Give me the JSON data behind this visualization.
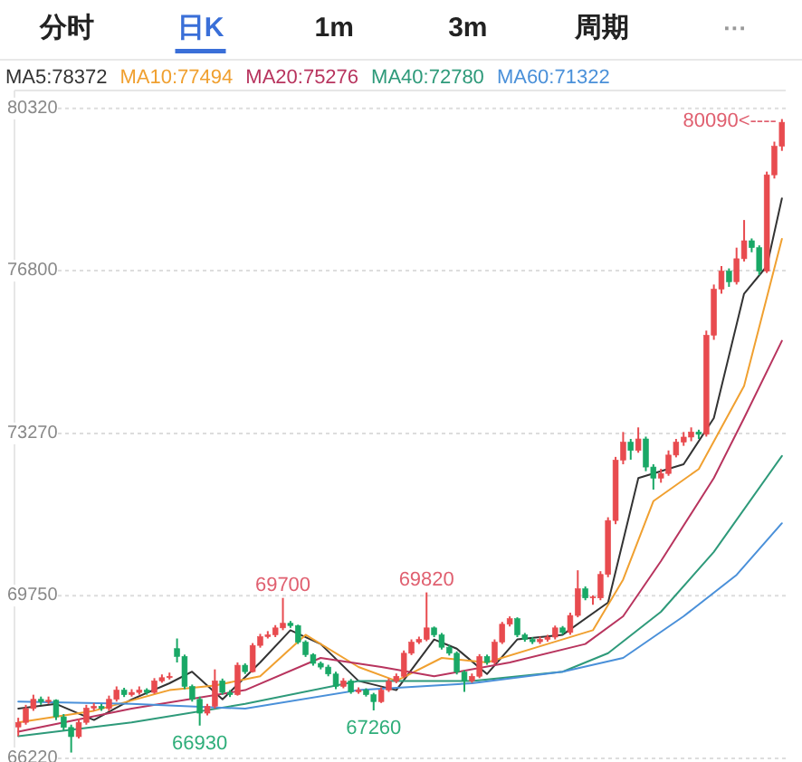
{
  "chart_data": {
    "type": "candlestick",
    "categories": [
      null,
      null,
      null,
      null,
      null,
      null,
      null,
      null,
      null,
      null,
      null,
      null,
      null,
      null,
      null,
      null,
      null,
      null,
      null,
      null,
      null,
      null,
      null,
      null,
      null,
      null,
      null,
      null,
      null,
      null,
      null,
      null,
      null,
      null,
      null,
      null,
      null,
      null,
      null,
      null,
      null,
      null,
      null,
      null,
      null,
      null,
      null,
      null,
      null,
      null,
      null,
      null,
      null,
      null,
      null,
      null,
      null,
      null,
      null,
      null,
      null,
      null,
      null,
      null,
      null,
      null,
      null,
      null,
      null,
      null,
      null,
      null,
      null,
      null,
      null,
      null,
      null,
      null,
      null,
      null,
      null,
      null,
      null,
      null,
      null,
      null,
      null,
      null,
      null,
      null,
      null,
      null,
      null,
      null,
      null,
      null,
      null,
      null,
      null,
      null,
      null,
      null
    ],
    "ohlc": [
      [
        66900,
        67100,
        66700,
        67000
      ],
      [
        67000,
        67380,
        66950,
        67300
      ],
      [
        67300,
        67600,
        67250,
        67500
      ],
      [
        67500,
        67560,
        67380,
        67450
      ],
      [
        67450,
        67560,
        67400,
        67480
      ],
      [
        67480,
        67500,
        67050,
        67120
      ],
      [
        67120,
        67180,
        66820,
        66890
      ],
      [
        66890,
        66950,
        66345,
        66690
      ],
      [
        66690,
        67080,
        66650,
        67000
      ],
      [
        67000,
        67380,
        66950,
        67310
      ],
      [
        67310,
        67420,
        67250,
        67350
      ],
      [
        67350,
        67400,
        67250,
        67300
      ],
      [
        67300,
        67580,
        67240,
        67500
      ],
      [
        67500,
        67780,
        67450,
        67700
      ],
      [
        67700,
        67750,
        67550,
        67600
      ],
      [
        67600,
        67720,
        67560,
        67650
      ],
      [
        67650,
        67780,
        67600,
        67700
      ],
      [
        67700,
        67740,
        67600,
        67650
      ],
      [
        67650,
        67960,
        67620,
        67900
      ],
      [
        67900,
        68040,
        67860,
        67970
      ],
      [
        67970,
        68080,
        67930,
        68000
      ],
      [
        68600,
        68820,
        68300,
        68430
      ],
      [
        68430,
        68470,
        67720,
        67780
      ],
      [
        67780,
        67820,
        67450,
        67500
      ],
      [
        67500,
        67560,
        66930,
        67200
      ],
      [
        67200,
        67400,
        67150,
        67350
      ],
      [
        67350,
        68150,
        67300,
        67900
      ],
      [
        67900,
        67950,
        67600,
        67650
      ],
      [
        67650,
        67700,
        67550,
        67600
      ],
      [
        67600,
        68300,
        67580,
        68240
      ],
      [
        68240,
        68280,
        68050,
        68100
      ],
      [
        68100,
        68720,
        68080,
        68670
      ],
      [
        68670,
        68920,
        68620,
        68860
      ],
      [
        68860,
        68980,
        68820,
        68900
      ],
      [
        68900,
        69110,
        68850,
        69050
      ],
      [
        69050,
        69700,
        69000,
        69150
      ],
      [
        69150,
        69200,
        69050,
        69100
      ],
      [
        69100,
        69120,
        68700,
        68740
      ],
      [
        68740,
        68780,
        68420,
        68470
      ],
      [
        68470,
        68500,
        68230,
        68280
      ],
      [
        68280,
        68320,
        68150,
        68200
      ],
      [
        68200,
        68250,
        68000,
        68050
      ],
      [
        68050,
        68100,
        67720,
        67780
      ],
      [
        67780,
        67960,
        67740,
        67900
      ],
      [
        67900,
        67940,
        67620,
        67660
      ],
      [
        67660,
        67760,
        67620,
        67700
      ],
      [
        67700,
        67740,
        67560,
        67600
      ],
      [
        67600,
        67640,
        67260,
        67450
      ],
      [
        67450,
        67760,
        67420,
        67700
      ],
      [
        67700,
        67950,
        67660,
        67890
      ],
      [
        67890,
        68060,
        67850,
        68000
      ],
      [
        68000,
        68560,
        67960,
        68500
      ],
      [
        68500,
        68800,
        68460,
        68740
      ],
      [
        68740,
        68860,
        68700,
        68800
      ],
      [
        68800,
        69820,
        68760,
        69050
      ],
      [
        69050,
        69080,
        68850,
        68900
      ],
      [
        68900,
        68940,
        68580,
        68630
      ],
      [
        68630,
        68680,
        68450,
        68500
      ],
      [
        68500,
        68540,
        68040,
        68090
      ],
      [
        68090,
        68130,
        67660,
        67900
      ],
      [
        67900,
        68060,
        67860,
        68000
      ],
      [
        68000,
        68480,
        67960,
        68430
      ],
      [
        68430,
        68470,
        68250,
        68300
      ],
      [
        68300,
        68800,
        68260,
        68740
      ],
      [
        68740,
        69180,
        68700,
        69130
      ],
      [
        69130,
        69300,
        69080,
        69250
      ],
      [
        69250,
        69280,
        68850,
        68900
      ],
      [
        68900,
        68940,
        68750,
        68800
      ],
      [
        68800,
        68850,
        68700,
        68750
      ],
      [
        68750,
        68860,
        68700,
        68800
      ],
      [
        68800,
        68900,
        68750,
        68850
      ],
      [
        68850,
        69100,
        68800,
        69050
      ],
      [
        69050,
        69090,
        68900,
        68950
      ],
      [
        68950,
        69380,
        68900,
        69320
      ],
      [
        69320,
        70300,
        69280,
        69900
      ],
      [
        69900,
        69950,
        69650,
        69700
      ],
      [
        69700,
        69760,
        69550,
        69720
      ],
      [
        69700,
        70280,
        69650,
        70210
      ],
      [
        70210,
        71450,
        70150,
        71380
      ],
      [
        71380,
        72760,
        71300,
        72690
      ],
      [
        72690,
        73300,
        72600,
        73080
      ],
      [
        73080,
        73150,
        72700,
        72900
      ],
      [
        72900,
        73400,
        72850,
        73150
      ],
      [
        73150,
        73200,
        72450,
        72540
      ],
      [
        72540,
        72600,
        72050,
        72300
      ],
      [
        72300,
        72500,
        72200,
        72400
      ],
      [
        72400,
        72900,
        72350,
        72800
      ],
      [
        72800,
        73150,
        72750,
        73080
      ],
      [
        73080,
        73300,
        73000,
        73190
      ],
      [
        73190,
        73400,
        73100,
        73300
      ],
      [
        73300,
        73350,
        73150,
        73250
      ],
      [
        73250,
        75500,
        73200,
        75400
      ],
      [
        75400,
        76500,
        75300,
        76400
      ],
      [
        76400,
        76900,
        76300,
        76790
      ],
      [
        76790,
        76850,
        76450,
        76560
      ],
      [
        76560,
        77300,
        76500,
        77060
      ],
      [
        77060,
        77900,
        77000,
        77450
      ],
      [
        77450,
        77500,
        77200,
        77300
      ],
      [
        77300,
        77350,
        76700,
        76790
      ],
      [
        76790,
        78950,
        76750,
        78880
      ],
      [
        78880,
        79600,
        78800,
        79500
      ],
      [
        79500,
        80090,
        79400,
        80020
      ]
    ],
    "series": [
      {
        "type": "line",
        "name": "MA5:78372",
        "color": "#333333",
        "values": [
          67300,
          null,
          null,
          null,
          null,
          67400,
          null,
          null,
          null,
          null,
          67050,
          null,
          null,
          null,
          null,
          67500,
          null,
          null,
          null,
          null,
          67850,
          null,
          null,
          68100,
          null,
          null,
          null,
          67500,
          null,
          null,
          null,
          null,
          68300,
          null,
          null,
          null,
          69000,
          null,
          null,
          null,
          68700,
          null,
          null,
          null,
          null,
          67900,
          null,
          null,
          null,
          null,
          67700,
          null,
          null,
          null,
          null,
          68800,
          null,
          null,
          68600,
          null,
          null,
          null,
          68050,
          null,
          null,
          null,
          68800,
          null,
          null,
          null,
          null,
          null,
          68900,
          null,
          null,
          null,
          null,
          null,
          69600,
          null,
          null,
          null,
          72300,
          null,
          null,
          null,
          null,
          null,
          72600,
          null,
          null,
          null,
          73600,
          null,
          null,
          null,
          76300,
          null,
          null,
          76900,
          null,
          78370
        ]
      },
      {
        "type": "line",
        "name": "MA10:77494",
        "color": "#f0a030",
        "values": [
          67000,
          null,
          null,
          null,
          null,
          null,
          null,
          null,
          null,
          null,
          67250,
          null,
          null,
          null,
          null,
          null,
          null,
          null,
          null,
          null,
          67700,
          null,
          null,
          null,
          null,
          null,
          67800,
          null,
          null,
          null,
          null,
          null,
          68000,
          null,
          null,
          null,
          null,
          null,
          68900,
          null,
          null,
          null,
          null,
          null,
          null,
          68200,
          null,
          null,
          null,
          null,
          67900,
          null,
          null,
          null,
          null,
          null,
          68400,
          null,
          null,
          null,
          null,
          null,
          68300,
          null,
          null,
          null,
          null,
          null,
          null,
          null,
          68700,
          null,
          null,
          null,
          null,
          null,
          69000,
          null,
          null,
          null,
          70100,
          null,
          null,
          null,
          71800,
          null,
          null,
          null,
          null,
          null,
          72500,
          null,
          null,
          null,
          null,
          null,
          74300,
          null,
          null,
          null,
          null,
          77490
        ]
      },
      {
        "type": "line",
        "name": "MA20:75276",
        "color": "#b8345e",
        "values": [
          66800,
          null,
          null,
          null,
          null,
          null,
          null,
          null,
          null,
          null,
          null,
          null,
          null,
          null,
          null,
          67300,
          null,
          null,
          null,
          null,
          null,
          null,
          null,
          null,
          null,
          null,
          null,
          null,
          null,
          null,
          67700,
          null,
          null,
          null,
          null,
          null,
          null,
          null,
          null,
          null,
          68400,
          null,
          null,
          null,
          null,
          null,
          null,
          null,
          68200,
          null,
          null,
          null,
          null,
          null,
          null,
          68000,
          null,
          null,
          null,
          null,
          null,
          null,
          null,
          null,
          null,
          68300,
          null,
          null,
          null,
          null,
          null,
          null,
          null,
          null,
          null,
          68700,
          null,
          null,
          null,
          null,
          69300,
          null,
          null,
          null,
          null,
          70500,
          null,
          null,
          null,
          null,
          null,
          null,
          72300,
          null,
          null,
          null,
          73600,
          null,
          null,
          null,
          null,
          75280
        ]
      },
      {
        "type": "line",
        "name": "MA40:72780",
        "color": "#2e9a7a",
        "values": [
          66700,
          null,
          null,
          null,
          null,
          null,
          null,
          null,
          null,
          null,
          null,
          null,
          null,
          null,
          null,
          67000,
          null,
          null,
          null,
          null,
          null,
          null,
          null,
          null,
          null,
          null,
          null,
          null,
          null,
          null,
          67400,
          null,
          null,
          null,
          null,
          null,
          null,
          null,
          null,
          null,
          null,
          null,
          null,
          null,
          null,
          67900,
          null,
          null,
          null,
          null,
          null,
          null,
          null,
          null,
          null,
          null,
          null,
          null,
          null,
          null,
          67900,
          null,
          null,
          null,
          null,
          null,
          null,
          null,
          null,
          null,
          null,
          null,
          68100,
          null,
          null,
          null,
          null,
          null,
          68500,
          null,
          null,
          null,
          null,
          null,
          null,
          69400,
          null,
          null,
          null,
          null,
          null,
          null,
          70700,
          null,
          null,
          null,
          null,
          null,
          null,
          null,
          null,
          72780
        ]
      },
      {
        "type": "line",
        "name": "MA60:71322",
        "color": "#4a90d9",
        "values": [
          67450,
          null,
          null,
          null,
          null,
          null,
          null,
          null,
          null,
          null,
          null,
          null,
          null,
          null,
          null,
          67400,
          null,
          null,
          null,
          null,
          null,
          null,
          null,
          null,
          null,
          null,
          null,
          null,
          null,
          null,
          67300,
          null,
          null,
          null,
          null,
          null,
          null,
          null,
          null,
          null,
          null,
          null,
          null,
          null,
          null,
          67700,
          null,
          null,
          null,
          null,
          null,
          null,
          null,
          null,
          null,
          null,
          null,
          null,
          null,
          null,
          67850,
          null,
          null,
          null,
          null,
          null,
          null,
          null,
          null,
          null,
          null,
          null,
          68100,
          null,
          null,
          null,
          null,
          null,
          null,
          null,
          68400,
          null,
          null,
          null,
          null,
          null,
          null,
          null,
          69300,
          null,
          null,
          null,
          null,
          null,
          null,
          70200,
          null,
          null,
          null,
          null,
          null,
          71320
        ]
      }
    ],
    "ylim": [
      66140,
      80710
    ],
    "yticks": [
      66220,
      69750,
      73270,
      76800,
      80320
    ],
    "grid": "y",
    "legend": "top left",
    "annotations": [
      "分时",
      "日K",
      "1m",
      "3m",
      "周期",
      "···",
      {
        "text": "69700",
        "y": 69700
      },
      {
        "text": "66930",
        "y": 66930
      },
      {
        "text": "69820",
        "y": 69820
      },
      {
        "text": "67260",
        "y": 67260
      },
      "80090<----"
    ]
  }
}
